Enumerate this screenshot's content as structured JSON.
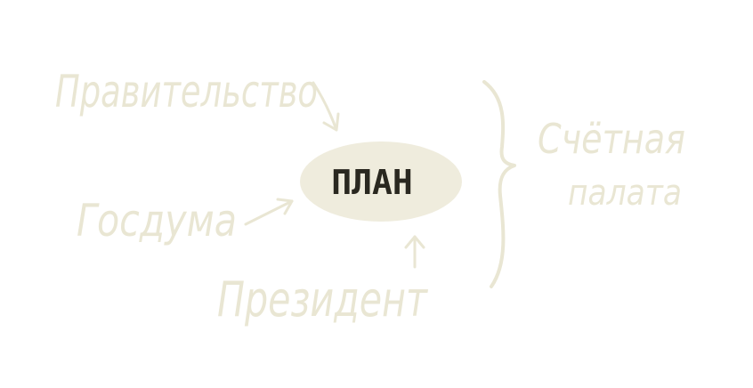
{
  "diagram": {
    "center": {
      "label": "ПЛАН"
    },
    "sources": [
      {
        "id": "government",
        "label": "Правительство"
      },
      {
        "id": "duma",
        "label": "Госдума"
      },
      {
        "id": "president",
        "label": "Президент"
      }
    ],
    "overseer": {
      "line1": "Счётная",
      "line2": "палата"
    }
  },
  "colors": {
    "background": "#ffffff",
    "ink_light": "#e9e6d3",
    "ellipse_fill": "#efecdd",
    "ink_dark": "#2a2820"
  }
}
